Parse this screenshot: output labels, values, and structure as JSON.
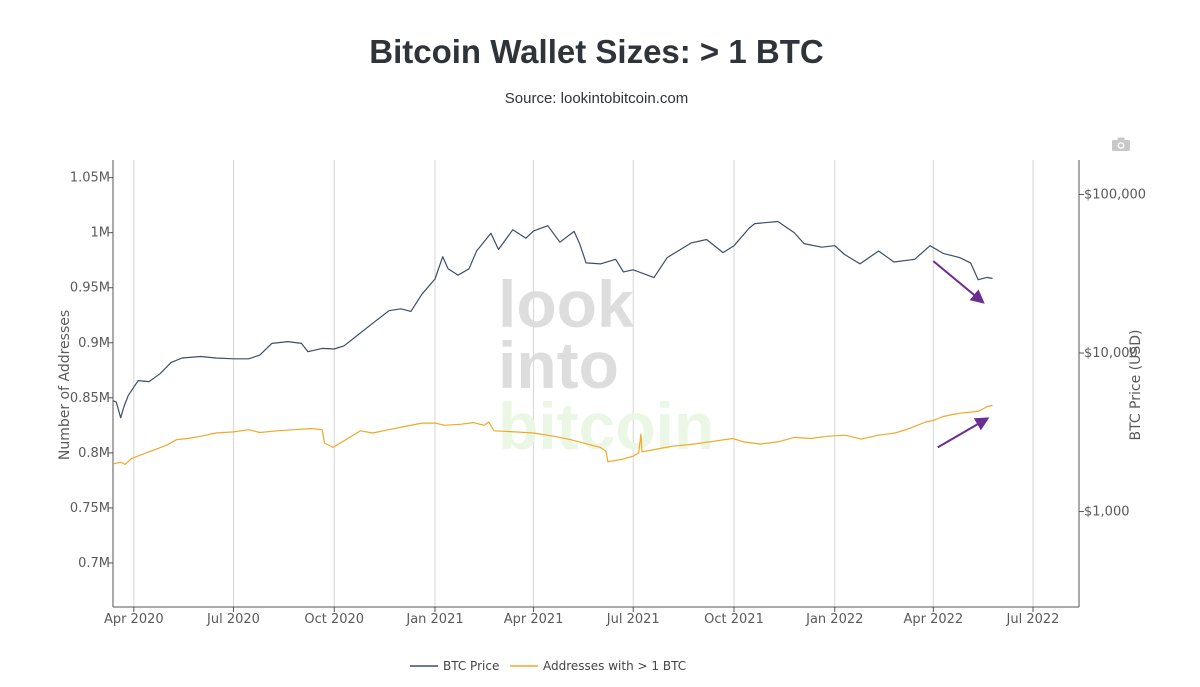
{
  "header": {
    "title": "Bitcoin Wallet Sizes: > 1 BTC",
    "subtitle": "Source: lookintobitcoin.com"
  },
  "watermark": [
    "look",
    "into",
    "bitcoin"
  ],
  "toolbar": {
    "camera_icon": "camera-icon"
  },
  "colors": {
    "price": "#3d4d6b",
    "addresses": "#f0a829",
    "arrow": "#6c2d91",
    "grid": "#d6d6d6",
    "axis_text": "#5a5a5a"
  },
  "chart_data": {
    "type": "line",
    "x_axis": {
      "ticks": [
        "2020-04-01",
        "2020-07-01",
        "2020-10-01",
        "2021-01-01",
        "2021-04-01",
        "2021-07-01",
        "2021-10-01",
        "2022-01-01",
        "2022-04-01",
        "2022-07-01"
      ],
      "tick_labels": [
        "Apr 2020",
        "Jul 2020",
        "Oct 2020",
        "Jan 2021",
        "Apr 2021",
        "Jul 2021",
        "Oct 2021",
        "Jan 2022",
        "Apr 2022",
        "Jul 2022"
      ],
      "range": [
        "2020-03-13",
        "2022-08-12"
      ]
    },
    "y_axis_left": {
      "label": "Number of Addresses",
      "ticks": [
        700000,
        750000,
        800000,
        850000,
        900000,
        950000,
        1000000,
        1050000
      ],
      "tick_labels": [
        "0.7M",
        "0.75M",
        "0.8M",
        "0.85M",
        "0.9M",
        "0.95M",
        "1M",
        "1.05M"
      ],
      "range": [
        660000,
        1066000
      ]
    },
    "y_axis_right": {
      "label": "BTC Price (USD)",
      "scale": "log",
      "ticks": [
        1000,
        10000,
        100000
      ],
      "tick_labels": [
        "$1,000",
        "$10,000",
        "$100,000"
      ],
      "range": [
        250,
        165000
      ]
    },
    "grid": "vertical",
    "legend_position": "bottom",
    "series": [
      {
        "name": "BTC Price",
        "axis": "right",
        "points": [
          [
            "2020-03-13",
            5000
          ],
          [
            "2020-03-16",
            4900
          ],
          [
            "2020-03-20",
            3900
          ],
          [
            "2020-03-23",
            4600
          ],
          [
            "2020-03-27",
            5400
          ],
          [
            "2020-04-05",
            6700
          ],
          [
            "2020-04-15",
            6600
          ],
          [
            "2020-04-25",
            7400
          ],
          [
            "2020-05-05",
            8700
          ],
          [
            "2020-05-15",
            9300
          ],
          [
            "2020-06-01",
            9500
          ],
          [
            "2020-06-15",
            9300
          ],
          [
            "2020-07-01",
            9200
          ],
          [
            "2020-07-15",
            9200
          ],
          [
            "2020-07-25",
            9700
          ],
          [
            "2020-08-05",
            11500
          ],
          [
            "2020-08-20",
            11800
          ],
          [
            "2020-09-01",
            11500
          ],
          [
            "2020-09-07",
            10200
          ],
          [
            "2020-09-20",
            10700
          ],
          [
            "2020-10-01",
            10600
          ],
          [
            "2020-10-10",
            11100
          ],
          [
            "2020-10-22",
            12900
          ],
          [
            "2020-11-05",
            15400
          ],
          [
            "2020-11-20",
            18500
          ],
          [
            "2020-12-01",
            19000
          ],
          [
            "2020-12-10",
            18300
          ],
          [
            "2020-12-20",
            23500
          ],
          [
            "2021-01-01",
            29300
          ],
          [
            "2021-01-08",
            40500
          ],
          [
            "2021-01-13",
            34000
          ],
          [
            "2021-01-22",
            31000
          ],
          [
            "2021-02-01",
            34000
          ],
          [
            "2021-02-08",
            44000
          ],
          [
            "2021-02-21",
            57000
          ],
          [
            "2021-02-28",
            45000
          ],
          [
            "2021-03-13",
            60000
          ],
          [
            "2021-03-25",
            53000
          ],
          [
            "2021-04-01",
            58900
          ],
          [
            "2021-04-14",
            63500
          ],
          [
            "2021-04-25",
            50000
          ],
          [
            "2021-05-08",
            58500
          ],
          [
            "2021-05-13",
            49000
          ],
          [
            "2021-05-19",
            37000
          ],
          [
            "2021-06-01",
            36500
          ],
          [
            "2021-06-15",
            39000
          ],
          [
            "2021-06-22",
            32500
          ],
          [
            "2021-07-01",
            33500
          ],
          [
            "2021-07-20",
            29900
          ],
          [
            "2021-08-01",
            40000
          ],
          [
            "2021-08-23",
            49500
          ],
          [
            "2021-09-06",
            52000
          ],
          [
            "2021-09-21",
            43000
          ],
          [
            "2021-10-01",
            47500
          ],
          [
            "2021-10-15",
            61500
          ],
          [
            "2021-10-20",
            65500
          ],
          [
            "2021-11-10",
            67500
          ],
          [
            "2021-11-25",
            57500
          ],
          [
            "2021-12-04",
            49000
          ],
          [
            "2021-12-20",
            46500
          ],
          [
            "2022-01-01",
            47500
          ],
          [
            "2022-01-10",
            41800
          ],
          [
            "2022-01-24",
            36500
          ],
          [
            "2022-02-10",
            44000
          ],
          [
            "2022-02-24",
            37500
          ],
          [
            "2022-03-15",
            39000
          ],
          [
            "2022-03-29",
            47500
          ],
          [
            "2022-04-10",
            42500
          ],
          [
            "2022-04-25",
            40000
          ],
          [
            "2022-05-05",
            37000
          ],
          [
            "2022-05-12",
            29000
          ],
          [
            "2022-05-20",
            30000
          ],
          [
            "2022-05-25",
            29500
          ]
        ]
      },
      {
        "name": "Addresses with > 1 BTC",
        "axis": "left",
        "points": [
          [
            "2020-03-13",
            790000
          ],
          [
            "2020-03-20",
            791500
          ],
          [
            "2020-03-24",
            789500
          ],
          [
            "2020-03-30",
            795000
          ],
          [
            "2020-04-15",
            801000
          ],
          [
            "2020-05-01",
            807000
          ],
          [
            "2020-05-10",
            812000
          ],
          [
            "2020-05-20",
            813000
          ],
          [
            "2020-06-01",
            815000
          ],
          [
            "2020-06-15",
            818000
          ],
          [
            "2020-07-01",
            819000
          ],
          [
            "2020-07-15",
            821000
          ],
          [
            "2020-07-25",
            818500
          ],
          [
            "2020-08-10",
            820000
          ],
          [
            "2020-08-25",
            821000
          ],
          [
            "2020-09-10",
            822000
          ],
          [
            "2020-09-20",
            821000
          ],
          [
            "2020-09-22",
            809000
          ],
          [
            "2020-09-30",
            805000
          ],
          [
            "2020-10-10",
            811000
          ],
          [
            "2020-10-25",
            820000
          ],
          [
            "2020-11-05",
            818000
          ],
          [
            "2020-11-20",
            821000
          ],
          [
            "2020-12-05",
            824000
          ],
          [
            "2020-12-20",
            827000
          ],
          [
            "2021-01-01",
            827000
          ],
          [
            "2021-01-10",
            825000
          ],
          [
            "2021-01-25",
            826000
          ],
          [
            "2021-02-05",
            827500
          ],
          [
            "2021-02-15",
            825000
          ],
          [
            "2021-02-19",
            828000
          ],
          [
            "2021-02-24",
            820000
          ],
          [
            "2021-03-15",
            819000
          ],
          [
            "2021-04-01",
            818000
          ],
          [
            "2021-04-20",
            815000
          ],
          [
            "2021-05-05",
            812000
          ],
          [
            "2021-05-20",
            808000
          ],
          [
            "2021-06-01",
            805000
          ],
          [
            "2021-06-06",
            801500
          ],
          [
            "2021-06-08",
            792000
          ],
          [
            "2021-06-20",
            794000
          ],
          [
            "2021-07-01",
            797000
          ],
          [
            "2021-07-06",
            800000
          ],
          [
            "2021-07-08",
            817000
          ],
          [
            "2021-07-09",
            801000
          ],
          [
            "2021-07-20",
            803000
          ],
          [
            "2021-08-05",
            806000
          ],
          [
            "2021-08-25",
            808000
          ],
          [
            "2021-09-15",
            811000
          ],
          [
            "2021-09-30",
            813000
          ],
          [
            "2021-10-10",
            810000
          ],
          [
            "2021-10-25",
            808000
          ],
          [
            "2021-11-10",
            810000
          ],
          [
            "2021-11-25",
            814000
          ],
          [
            "2021-12-10",
            813000
          ],
          [
            "2021-12-25",
            815000
          ],
          [
            "2022-01-10",
            816000
          ],
          [
            "2022-01-15",
            815000
          ],
          [
            "2022-01-25",
            812500
          ],
          [
            "2022-02-10",
            816000
          ],
          [
            "2022-02-25",
            818000
          ],
          [
            "2022-03-10",
            822000
          ],
          [
            "2022-03-25",
            828000
          ],
          [
            "2022-04-01",
            829500
          ],
          [
            "2022-04-10",
            833000
          ],
          [
            "2022-04-25",
            836000
          ],
          [
            "2022-05-05",
            837000
          ],
          [
            "2022-05-13",
            838000
          ],
          [
            "2022-05-20",
            842000
          ],
          [
            "2022-05-25",
            843000
          ]
        ]
      }
    ],
    "annotations": [
      {
        "type": "arrow",
        "color": "#6c2d91",
        "direction": "down",
        "from": [
          "2022-04-01",
          38000
        ],
        "to": [
          "2022-05-16",
          21000
        ],
        "axis": "right"
      },
      {
        "type": "arrow",
        "color": "#6c2d91",
        "direction": "up",
        "from": [
          "2022-04-05",
          805000
        ],
        "to": [
          "2022-05-20",
          831000
        ],
        "axis": "left"
      }
    ]
  }
}
